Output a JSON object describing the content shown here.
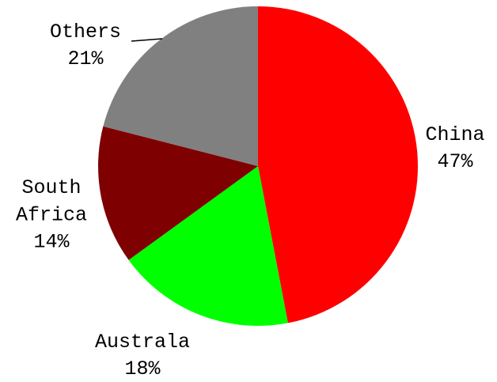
{
  "chart_data": {
    "type": "pie",
    "categories": [
      "China",
      "Australa",
      "South Africa",
      "Others"
    ],
    "values": [
      47,
      18,
      14,
      21
    ],
    "value_labels": [
      "47%",
      "18%",
      "14%",
      "21%"
    ],
    "colors": [
      "#ff0000",
      "#00ff00",
      "#7f0000",
      "#808080"
    ]
  }
}
